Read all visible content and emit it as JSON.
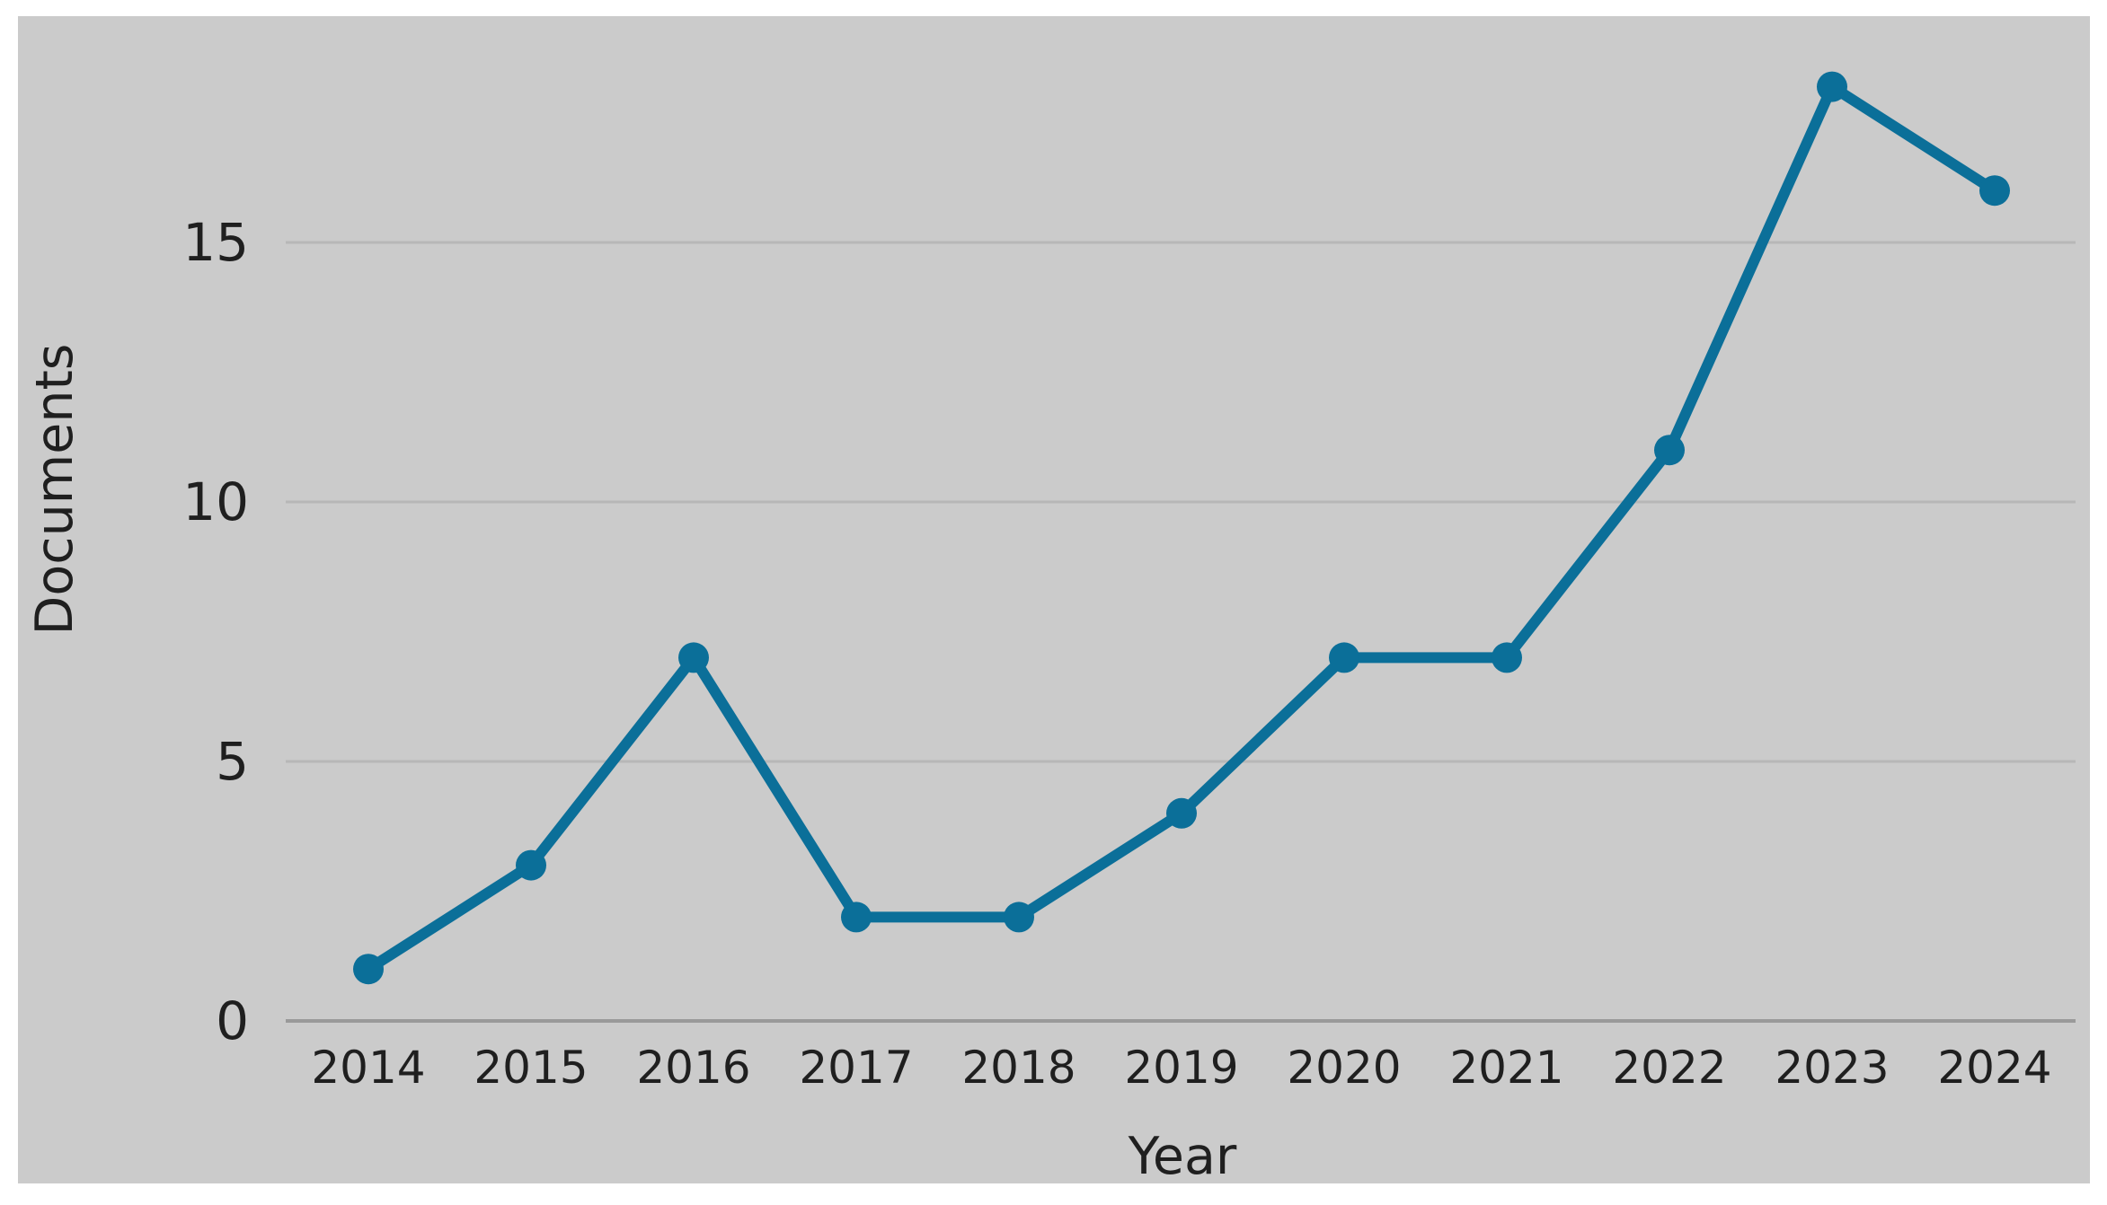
{
  "chart_data": {
    "type": "line",
    "title": "",
    "xlabel": "Year",
    "ylabel": "Documents",
    "categories": [
      "2014",
      "2015",
      "2016",
      "2017",
      "2018",
      "2019",
      "2020",
      "2021",
      "2022",
      "2023",
      "2024"
    ],
    "series": [
      {
        "name": "Documents",
        "values": [
          1,
          3,
          7,
          2,
          2,
          4,
          7,
          7,
          11,
          18,
          16
        ]
      }
    ],
    "yticks": [
      0,
      5,
      10,
      15
    ],
    "ylim": [
      0,
      19.4
    ],
    "grid": "horizontal-only",
    "legend_position": "none",
    "marker": "circle",
    "colors": {
      "line": "#0b6f99",
      "marker": "#0b6f99",
      "panel_background": "#cbcbcb",
      "page_background": "#ffffff",
      "gridline": "#b7b7b7",
      "axis_line": "#9a9a9a",
      "text": "#1f1f1f"
    }
  }
}
